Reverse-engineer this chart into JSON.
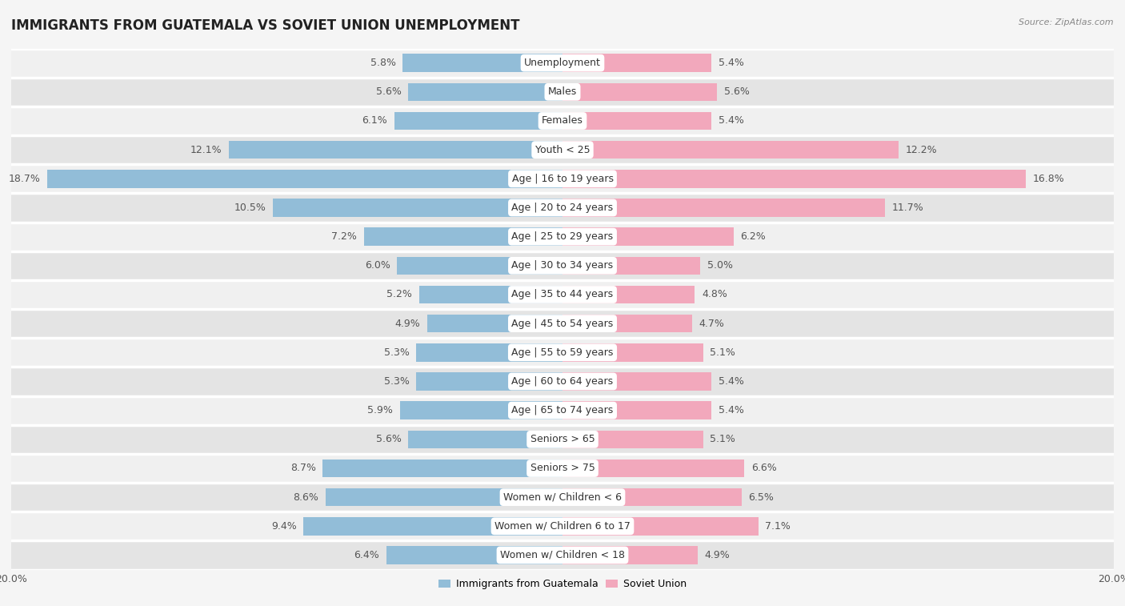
{
  "title": "IMMIGRANTS FROM GUATEMALA VS SOVIET UNION UNEMPLOYMENT",
  "source": "Source: ZipAtlas.com",
  "categories": [
    "Unemployment",
    "Males",
    "Females",
    "Youth < 25",
    "Age | 16 to 19 years",
    "Age | 20 to 24 years",
    "Age | 25 to 29 years",
    "Age | 30 to 34 years",
    "Age | 35 to 44 years",
    "Age | 45 to 54 years",
    "Age | 55 to 59 years",
    "Age | 60 to 64 years",
    "Age | 65 to 74 years",
    "Seniors > 65",
    "Seniors > 75",
    "Women w/ Children < 6",
    "Women w/ Children 6 to 17",
    "Women w/ Children < 18"
  ],
  "guatemala_values": [
    5.8,
    5.6,
    6.1,
    12.1,
    18.7,
    10.5,
    7.2,
    6.0,
    5.2,
    4.9,
    5.3,
    5.3,
    5.9,
    5.6,
    8.7,
    8.6,
    9.4,
    6.4
  ],
  "soviet_values": [
    5.4,
    5.6,
    5.4,
    12.2,
    16.8,
    11.7,
    6.2,
    5.0,
    4.8,
    4.7,
    5.1,
    5.4,
    5.4,
    5.1,
    6.6,
    6.5,
    7.1,
    4.9
  ],
  "guatemala_color": "#92bdd8",
  "soviet_color": "#f2a8bc",
  "xlim": 20.0,
  "row_colors": [
    "#f0f0f0",
    "#e4e4e4"
  ],
  "bg_color": "#f5f5f5",
  "title_fontsize": 12,
  "label_fontsize": 9,
  "value_fontsize": 9
}
